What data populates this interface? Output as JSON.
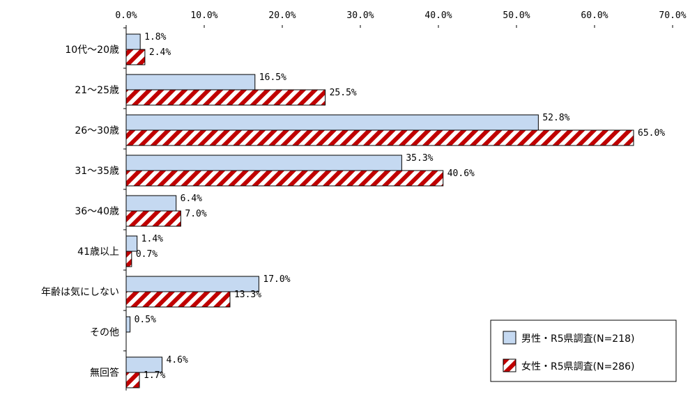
{
  "chart_data": {
    "type": "bar",
    "orientation": "horizontal",
    "categories": [
      "10代～20歳",
      "21～25歳",
      "26～30歳",
      "31～35歳",
      "36～40歳",
      "41歳以上",
      "年齢は気にしない",
      "その他",
      "無回答"
    ],
    "series": [
      {
        "name": "男性・R5県調査(N=218)",
        "values": [
          1.8,
          16.5,
          52.8,
          35.3,
          6.4,
          1.4,
          17.0,
          0.5,
          4.6
        ],
        "labels": [
          "1.8%",
          "16.5%",
          "52.8%",
          "35.3%",
          "6.4%",
          "1.4%",
          "17.0%",
          "0.5%",
          "4.6%"
        ],
        "color": "#c5d9f1",
        "pattern": "solid"
      },
      {
        "name": "女性・R5県調査(N=286)",
        "values": [
          2.4,
          25.5,
          65.0,
          40.6,
          7.0,
          0.7,
          13.3,
          null,
          1.7
        ],
        "labels": [
          "2.4%",
          "25.5%",
          "65.0%",
          "40.6%",
          "7.0%",
          "0.7%",
          "13.3%",
          null,
          "1.7%"
        ],
        "color": "#c00000",
        "pattern": "diagonal-stripes"
      }
    ],
    "xlim": [
      0,
      70
    ],
    "xticks": [
      0,
      10,
      20,
      30,
      40,
      50,
      60,
      70
    ],
    "xtick_labels": [
      "0.0%",
      "10.0%",
      "20.0%",
      "30.0%",
      "40.0%",
      "50.0%",
      "60.0%",
      "70.0%"
    ],
    "axis_position": "top",
    "grid": false,
    "legend_position": "bottom-right",
    "title": "",
    "xlabel": "",
    "ylabel": ""
  }
}
